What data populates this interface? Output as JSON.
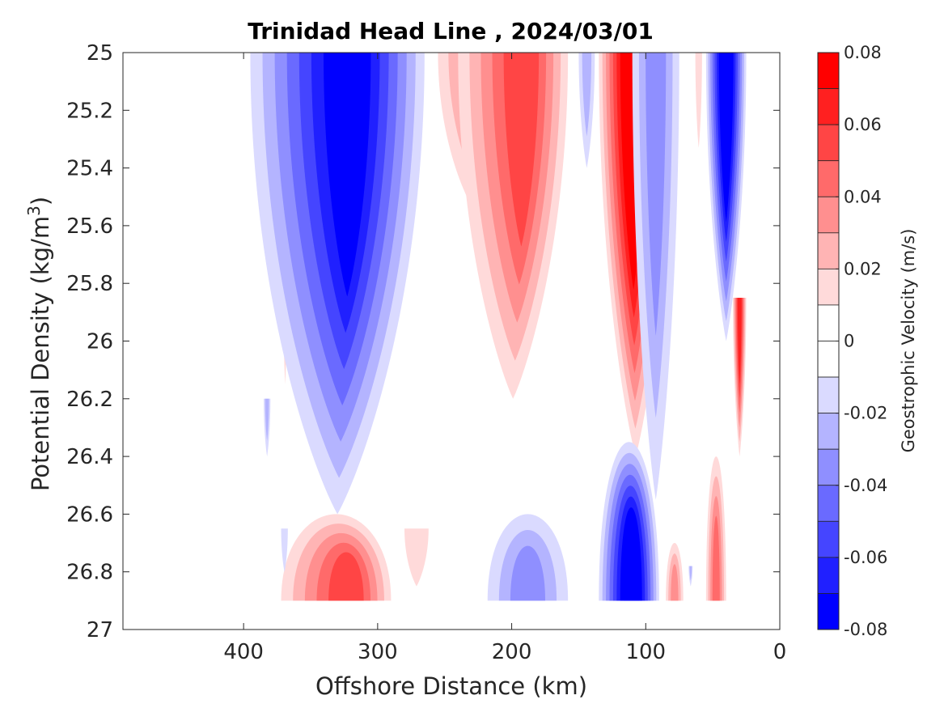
{
  "chart_data": {
    "type": "heatmap",
    "title": "Trinidad Head Line , 2024/03/01",
    "xlabel": "Offshore Distance (km)",
    "ylabel_main": "Potential Density (kg/m",
    "ylabel_sup": "3",
    "ylabel_close": ")",
    "xlim": [
      490,
      0
    ],
    "x_reversed": true,
    "ylim": [
      25,
      27
    ],
    "y_reversed": true,
    "x_ticks": [
      400,
      300,
      200,
      100,
      0
    ],
    "x_tick_labels": [
      "400",
      "300",
      "200",
      "100",
      "0"
    ],
    "y_ticks": [
      25,
      25.2,
      25.4,
      25.6,
      25.8,
      26,
      26.2,
      26.4,
      26.6,
      26.8,
      27
    ],
    "y_tick_labels": [
      "25",
      "25.2",
      "25.4",
      "25.6",
      "25.8",
      "26",
      "26.2",
      "26.4",
      "26.6",
      "26.8",
      "27"
    ],
    "colorbar": {
      "label": "Geostrophic Velocity (m/s)",
      "range": [
        -0.08,
        0.08
      ],
      "step": 0.01,
      "tick_values": [
        0.08,
        0.06,
        0.04,
        0.02,
        0,
        -0.02,
        -0.04,
        -0.06,
        -0.08
      ],
      "tick_labels": [
        "0.08",
        "0.06",
        "0.04",
        "0.02",
        "0",
        "-0.02",
        "-0.04",
        "-0.06",
        "-0.08"
      ],
      "colors_top_to_bottom": [
        "#ff0000",
        "#ff2020",
        "#ff4545",
        "#ff6a6a",
        "#ff8f8f",
        "#ffb4b4",
        "#ffdada",
        "#ffffff",
        "#ffffff",
        "#dadaff",
        "#b4b4ff",
        "#8f8fff",
        "#6a6aff",
        "#4545ff",
        "#2020ff",
        "#0000ff"
      ]
    },
    "features": [
      {
        "sign": "positive",
        "x_range": [
          373,
          365
        ],
        "y_range": [
          25.0,
          26.15
        ],
        "peak": 0.01
      },
      {
        "sign": "negative",
        "x_range": [
          395,
          265
        ],
        "y_range": [
          25.0,
          26.6
        ],
        "peak": -0.07,
        "core_x": 320
      },
      {
        "sign": "negative",
        "x_range": [
          385,
          380
        ],
        "y_range": [
          26.2,
          26.4
        ],
        "peak": -0.02
      },
      {
        "sign": "positive",
        "x_range": [
          255,
          200
        ],
        "y_range": [
          25.0,
          25.55
        ],
        "peak": 0.03
      },
      {
        "sign": "positive",
        "x_range": [
          240,
          158
        ],
        "y_range": [
          25.0,
          26.2
        ],
        "peak": 0.05,
        "core_x": 190
      },
      {
        "sign": "negative",
        "x_range": [
          150,
          138
        ],
        "y_range": [
          25.0,
          25.4
        ],
        "peak": -0.02
      },
      {
        "sign": "positive",
        "x_range": [
          135,
          80
        ],
        "y_range": [
          25.0,
          26.4
        ],
        "peak": 0.08,
        "core_x": 110
      },
      {
        "sign": "negative",
        "x_range": [
          110,
          75
        ],
        "y_range": [
          25.0,
          26.55
        ],
        "peak": -0.03
      },
      {
        "sign": "positive",
        "x_range": [
          63,
          58
        ],
        "y_range": [
          25.0,
          25.33
        ],
        "peak": 0.01
      },
      {
        "sign": "negative",
        "x_range": [
          55,
          25
        ],
        "y_range": [
          25.0,
          26.0
        ],
        "peak": -0.08,
        "core_x": 40
      },
      {
        "sign": "positive",
        "x_range": [
          35,
          25
        ],
        "y_range": [
          25.85,
          26.4
        ],
        "peak": 0.06
      },
      {
        "sign": "positive",
        "x_range": [
          372,
          290
        ],
        "y_range": [
          26.6,
          26.9
        ],
        "peak": 0.05,
        "core_x": 320
      },
      {
        "sign": "negative",
        "x_range": [
          372,
          367
        ],
        "y_range": [
          26.65,
          26.8
        ],
        "peak": -0.01
      },
      {
        "sign": "positive",
        "x_range": [
          280,
          262
        ],
        "y_range": [
          26.65,
          26.85
        ],
        "peak": 0.01
      },
      {
        "sign": "negative",
        "x_range": [
          218,
          158
        ],
        "y_range": [
          26.6,
          26.9
        ],
        "peak": -0.03
      },
      {
        "sign": "negative",
        "x_range": [
          135,
          90
        ],
        "y_range": [
          26.35,
          26.9
        ],
        "peak": -0.08,
        "core_x": 110
      },
      {
        "sign": "positive",
        "x_range": [
          85,
          72
        ],
        "y_range": [
          26.7,
          26.9
        ],
        "peak": 0.03
      },
      {
        "sign": "negative",
        "x_range": [
          68,
          65
        ],
        "y_range": [
          26.78,
          26.85
        ],
        "peak": -0.02
      },
      {
        "sign": "positive",
        "x_range": [
          55,
          40
        ],
        "y_range": [
          26.4,
          26.9
        ],
        "peak": 0.04
      }
    ]
  }
}
